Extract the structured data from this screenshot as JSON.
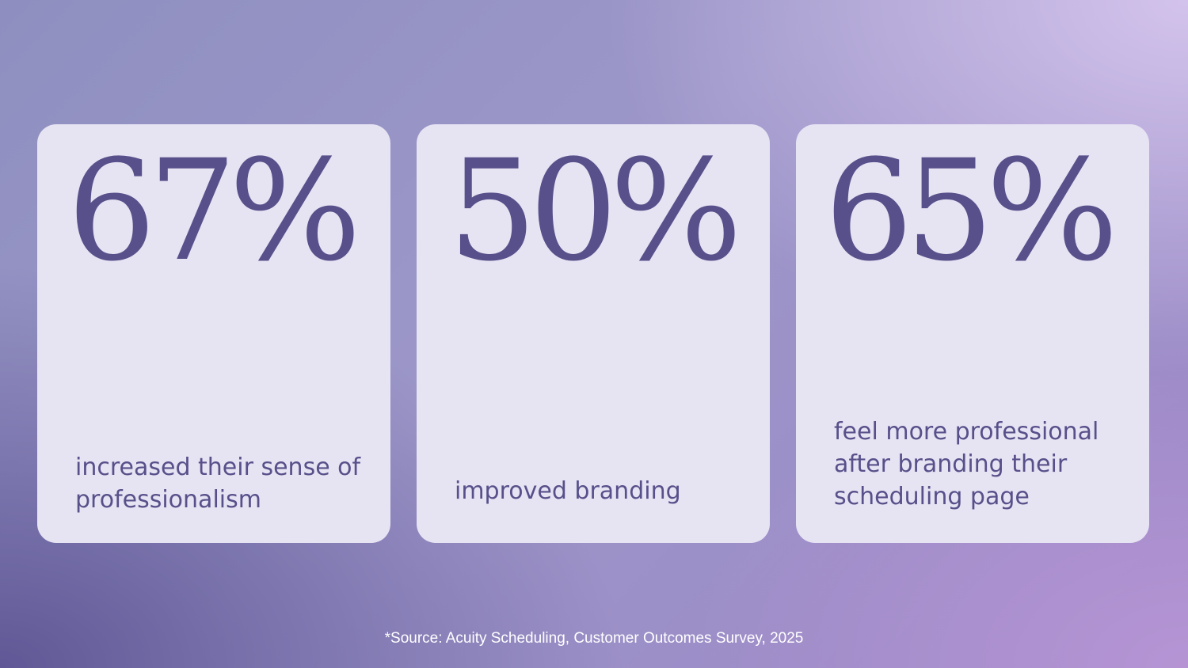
{
  "stats": [
    {
      "value": "67%",
      "caption": "increased their sense of professionalism"
    },
    {
      "value": "50%",
      "caption": "improved branding"
    },
    {
      "value": "65%",
      "caption": "feel more professional after branding their scheduling page"
    }
  ],
  "source": "*Source: Acuity Scheduling, Customer Outcomes Survey, 2025",
  "colors": {
    "card_background": "#e6e3f3",
    "text": "#57508a",
    "source_text": "#ffffff"
  }
}
